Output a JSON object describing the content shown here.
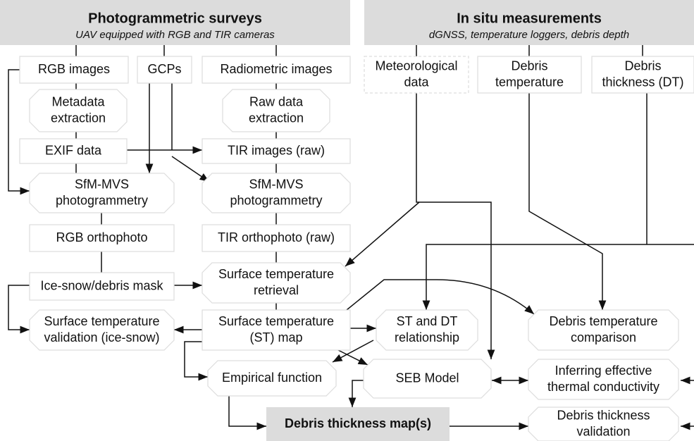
{
  "headers": [
    {
      "title": "Photogrammetric surveys",
      "subtitle": "UAV equipped with RGB and TIR cameras"
    },
    {
      "title": "In situ measurements",
      "subtitle": "dGNSS, temperature loggers, debris depth"
    }
  ],
  "nodes": [
    {
      "lines": [
        "RGB images"
      ]
    },
    {
      "lines": [
        "GCPs"
      ]
    },
    {
      "lines": [
        "Radiometric images"
      ]
    },
    {
      "lines": [
        "Meteorological",
        "data"
      ]
    },
    {
      "lines": [
        "Debris",
        "temperature"
      ]
    },
    {
      "lines": [
        "Debris",
        "thickness (DT)"
      ]
    },
    {
      "lines": [
        "Metadata",
        "extraction"
      ]
    },
    {
      "lines": [
        "Raw data",
        "extraction"
      ]
    },
    {
      "lines": [
        "EXIF data"
      ]
    },
    {
      "lines": [
        "TIR images (raw)"
      ]
    },
    {
      "lines": [
        "SfM-MVS",
        "photogrammetry"
      ]
    },
    {
      "lines": [
        "SfM-MVS",
        "photogrammetry"
      ]
    },
    {
      "lines": [
        "RGB orthophoto"
      ]
    },
    {
      "lines": [
        "TIR orthophoto (raw)"
      ]
    },
    {
      "lines": [
        "Ice-snow/debris mask"
      ]
    },
    {
      "lines": [
        "Surface temperature",
        "retrieval"
      ]
    },
    {
      "lines": [
        "Surface temperature",
        "validation (ice-snow)"
      ]
    },
    {
      "lines": [
        "Surface temperature",
        "(ST) map"
      ]
    },
    {
      "lines": [
        "ST and DT",
        "relationship"
      ]
    },
    {
      "lines": [
        "Debris temperature",
        "comparison"
      ]
    },
    {
      "lines": [
        "Empirical function"
      ]
    },
    {
      "lines": [
        "SEB Model"
      ]
    },
    {
      "lines": [
        "Inferring effective",
        "thermal conductivity"
      ]
    },
    {
      "lines": [
        "Debris thickness map(s)"
      ]
    },
    {
      "lines": [
        "Debris thickness",
        "validation"
      ]
    }
  ]
}
